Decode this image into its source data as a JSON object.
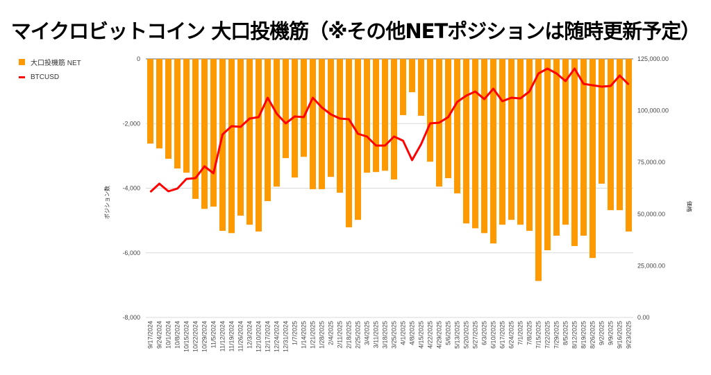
{
  "title": "マイクロビットコイン 大口投機筋（※その他NETポジションは随時更新予定）",
  "chart_data": {
    "type": "bar+line",
    "title": "マイクロビットコイン 大口投機筋（※その他NETポジションは随時更新予定）",
    "legend_position": "left",
    "grid": true,
    "y_left_label": "ポジション数",
    "y_right_label": "価格",
    "y_left_lim": [
      -8000,
      0
    ],
    "y_left_ticks": [
      "0",
      "-2,000",
      "-4,000",
      "-6,000",
      "-8,000"
    ],
    "y_right_lim": [
      0,
      125000
    ],
    "y_right_ticks": [
      "125,000.00",
      "100,000.00",
      "75,000.00",
      "50,000.00",
      "25,000.00",
      "0.00"
    ],
    "categories": [
      "9/17/2024",
      "9/24/2024",
      "10/1/2024",
      "10/8/2024",
      "10/15/2024",
      "10/22/2024",
      "10/29/2024",
      "11/5/2024",
      "11/12/2024",
      "11/19/2024",
      "11/26/2024",
      "12/3/2024",
      "12/10/2024",
      "12/17/2024",
      "12/24/2024",
      "12/31/2024",
      "1/7/2025",
      "1/14/2025",
      "1/21/2025",
      "1/28/2025",
      "2/4/2025",
      "2/11/2025",
      "2/18/2025",
      "2/25/2025",
      "3/4/2025",
      "3/11/2025",
      "3/18/2025",
      "3/25/2025",
      "4/1/2025",
      "4/8/2025",
      "4/15/2025",
      "4/22/2025",
      "4/29/2025",
      "5/6/2025",
      "5/13/2025",
      "5/20/2025",
      "5/27/2025",
      "6/3/2025",
      "6/10/2025",
      "6/17/2025",
      "6/24/2025",
      "7/1/2025",
      "7/8/2025",
      "7/15/2025",
      "7/22/2025",
      "7/29/2025",
      "8/5/2025",
      "8/12/2025",
      "8/19/2025",
      "8/26/2025",
      "9/2/2025",
      "9/9/2025",
      "9/16/2025",
      "9/23/2025"
    ],
    "series": [
      {
        "name": "大口投機筋 NET",
        "type": "bar",
        "axis": "left",
        "color": "#ff9900",
        "values": [
          -2620,
          -2770,
          -3090,
          -3390,
          -3520,
          -4330,
          -4640,
          -4570,
          -5320,
          -5390,
          -4850,
          -5130,
          -5340,
          -4400,
          -3950,
          -3070,
          -3670,
          -3030,
          -4030,
          -4030,
          -3650,
          -4140,
          -5210,
          -4980,
          -3520,
          -3500,
          -3460,
          -3730,
          -1740,
          -1030,
          -1760,
          -3180,
          -3950,
          -3690,
          -4160,
          -5090,
          -5240,
          -5390,
          -5710,
          -5130,
          -4980,
          -5130,
          -5320,
          -6870,
          -5920,
          -5470,
          -5130,
          -5790,
          -5470,
          -6160,
          -3860,
          -4680,
          -4680,
          -5340
        ]
      },
      {
        "name": "BTCUSD",
        "type": "line",
        "axis": "right",
        "color": "#ff0000",
        "values": [
          60650,
          64680,
          61000,
          62330,
          67000,
          67360,
          73050,
          69700,
          88470,
          92500,
          92160,
          96180,
          96850,
          106230,
          98530,
          93830,
          97180,
          96850,
          106230,
          101540,
          98190,
          96180,
          95840,
          88800,
          87470,
          83110,
          83110,
          87470,
          85450,
          76070,
          83780,
          93830,
          94170,
          96850,
          104220,
          107240,
          109250,
          105560,
          110590,
          104560,
          106230,
          105900,
          109250,
          117960,
          120310,
          117960,
          114280,
          120310,
          112940,
          112270,
          111600,
          111930,
          116960,
          112600
        ]
      }
    ]
  }
}
